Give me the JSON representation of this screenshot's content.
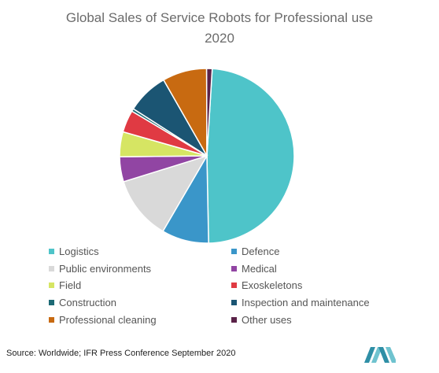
{
  "chart_data": {
    "type": "pie",
    "title": "Global Sales of Service Robots for Professional use",
    "subtitle": "2020",
    "categories": [
      "Logistics",
      "Defence",
      "Public environments",
      "Medical",
      "Field",
      "Exoskeletons",
      "Construction",
      "Inspection and maintenance",
      "Professional cleaning",
      "Other uses"
    ],
    "values": [
      47.5,
      8.5,
      11.5,
      4.5,
      4.5,
      4.0,
      0.5,
      7.5,
      8.0,
      1.0
    ],
    "colors": [
      "#4ec4c9",
      "#3a96c9",
      "#d9d9d9",
      "#9145a3",
      "#d6e563",
      "#e03a43",
      "#1d6a75",
      "#1b5573",
      "#c86a11",
      "#5a2248"
    ],
    "legend_position": "bottom",
    "source": "Source: Worldwide; IFR Press Conference September 2020"
  }
}
